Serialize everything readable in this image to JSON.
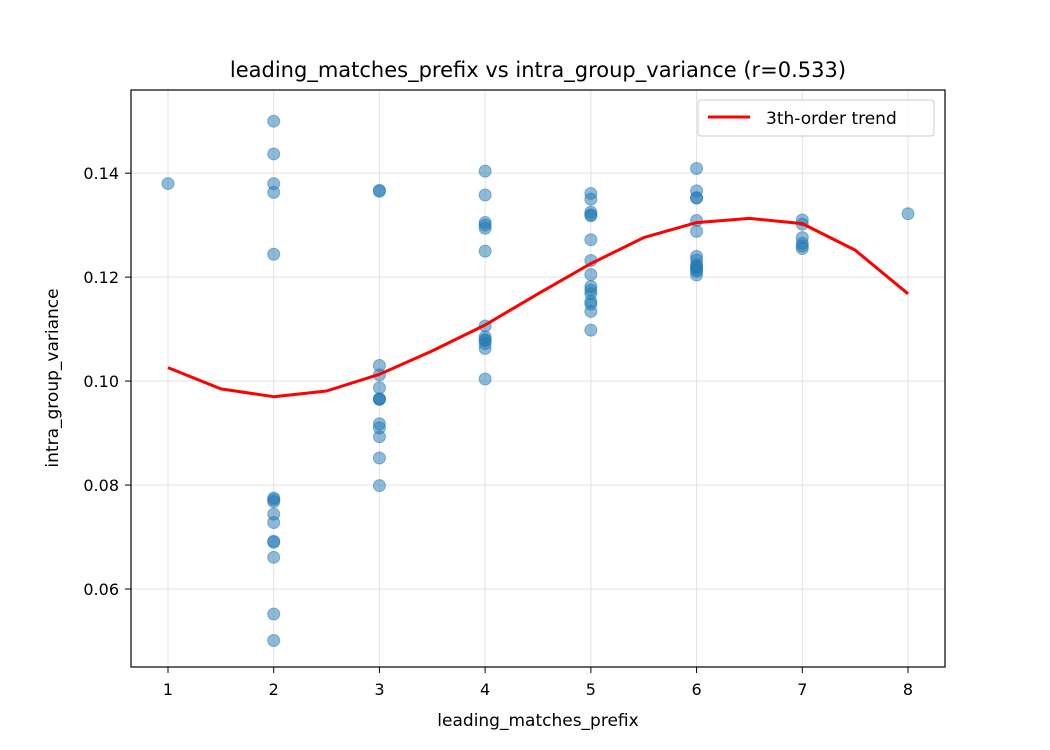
{
  "chart_data": {
    "type": "scatter",
    "title": "leading_matches_prefix vs intra_group_variance (r=0.533)",
    "xlabel": "leading_matches_prefix",
    "ylabel": "intra_group_variance",
    "xlim": [
      0.65,
      8.35
    ],
    "ylim": [
      0.045,
      0.156
    ],
    "xticks": [
      1,
      2,
      3,
      4,
      5,
      6,
      7,
      8
    ],
    "yticks": [
      0.06,
      0.08,
      0.1,
      0.12,
      0.14
    ],
    "xtick_labels": [
      "1",
      "2",
      "3",
      "4",
      "5",
      "6",
      "7",
      "8"
    ],
    "ytick_labels": [
      "0.06",
      "0.08",
      "0.10",
      "0.12",
      "0.14"
    ],
    "grid": true,
    "legend_position": "top-right",
    "legend_label": "3th-order trend",
    "colors": {
      "points": "#1f77b4",
      "trend": "#ff0000"
    },
    "points": {
      "x": [
        1,
        2,
        2,
        2,
        2,
        2,
        2,
        2,
        2,
        2,
        2,
        2,
        2,
        2,
        2,
        2,
        3,
        3,
        3,
        3,
        3,
        3,
        3,
        3,
        3,
        3,
        3,
        3,
        3,
        4,
        4,
        4,
        4,
        4,
        4,
        4,
        4,
        4,
        4,
        4,
        4,
        4,
        5,
        5,
        5,
        5,
        5,
        5,
        5,
        5,
        5,
        5,
        5,
        5,
        5,
        5,
        5,
        6,
        6,
        6,
        6,
        6,
        6,
        6,
        6,
        6,
        6,
        6,
        6,
        6,
        6,
        7,
        7,
        7,
        7,
        7,
        7,
        8
      ],
      "y": [
        0.138,
        0.15,
        0.1437,
        0.138,
        0.1363,
        0.1244,
        0.0775,
        0.0772,
        0.0768,
        0.0744,
        0.0728,
        0.0692,
        0.069,
        0.0661,
        0.0552,
        0.0501,
        0.1367,
        0.1365,
        0.103,
        0.1012,
        0.0987,
        0.0966,
        0.0965,
        0.0918,
        0.091,
        0.0893,
        0.0852,
        0.0799,
        0.0965,
        0.1404,
        0.1358,
        0.1305,
        0.13,
        0.1294,
        0.125,
        0.1106,
        0.1085,
        0.1078,
        0.1072,
        0.1063,
        0.1004,
        0.108,
        0.1361,
        0.135,
        0.1325,
        0.132,
        0.1318,
        0.1272,
        0.1232,
        0.1205,
        0.1182,
        0.1175,
        0.1168,
        0.1153,
        0.1148,
        0.1134,
        0.1098,
        0.1409,
        0.1366,
        0.1353,
        0.1352,
        0.1309,
        0.1288,
        0.124,
        0.1233,
        0.1224,
        0.1219,
        0.1214,
        0.1211,
        0.1204,
        0.122,
        0.131,
        0.1302,
        0.1276,
        0.1265,
        0.126,
        0.1255,
        0.1322
      ]
    },
    "trend": {
      "x": [
        1,
        1.5,
        2,
        2.5,
        3,
        3.5,
        4,
        4.5,
        5,
        5.5,
        6,
        6.5,
        7,
        7.5,
        8
      ],
      "y": [
        0.1026,
        0.0985,
        0.097,
        0.0981,
        0.1013,
        0.1058,
        0.1108,
        0.1168,
        0.1226,
        0.1276,
        0.1305,
        0.1313,
        0.1303,
        0.1252,
        0.1168
      ]
    }
  }
}
